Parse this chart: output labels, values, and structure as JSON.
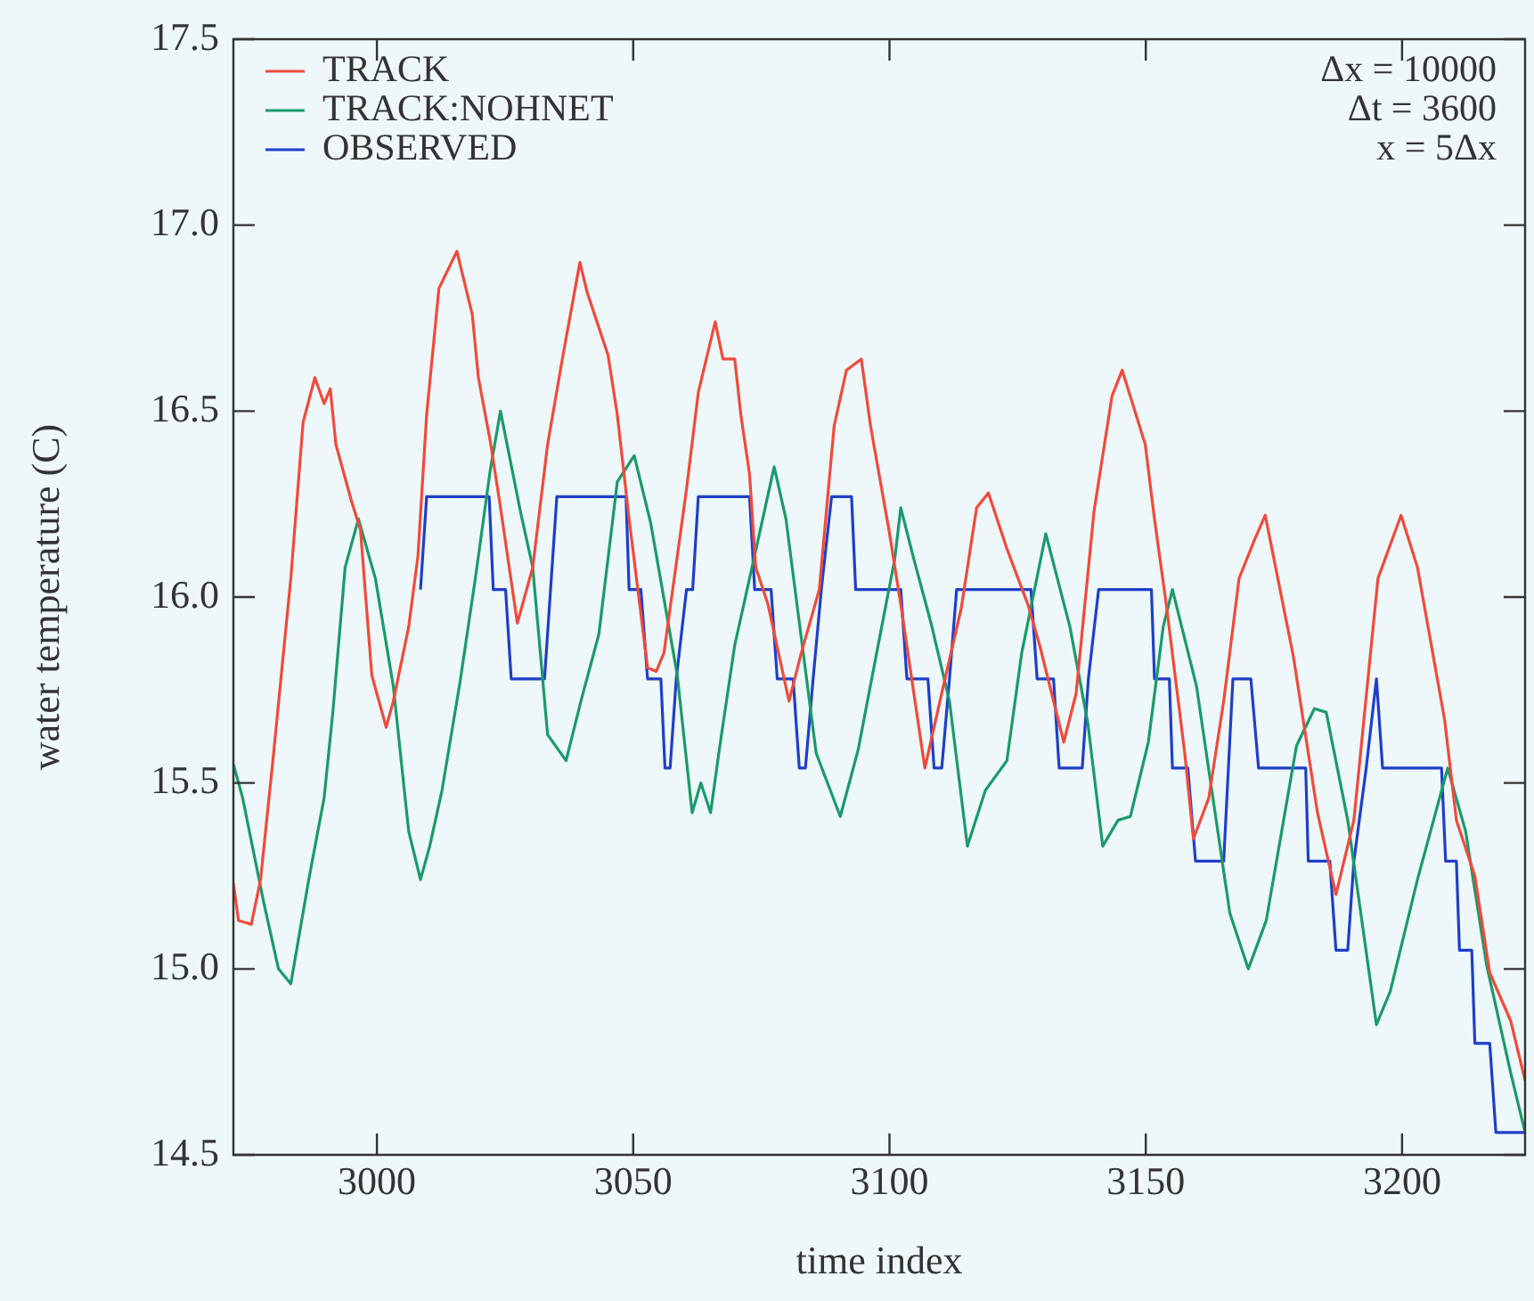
{
  "chart_data": {
    "type": "line",
    "xlabel": "time index",
    "ylabel": "water temperature (C)",
    "xlim": [
      2972,
      3224
    ],
    "xticks": [
      3000,
      3050,
      3100,
      3150,
      3200
    ],
    "ylim": [
      14.5,
      17.5
    ],
    "yticks": [
      14.5,
      {
        "value": 15,
        "label": "15.0"
      },
      15.5,
      {
        "value": 16,
        "label": "16.0"
      },
      16.5,
      {
        "value": 17,
        "label": "17.0"
      },
      17.5
    ],
    "grid": false,
    "legend": "top left",
    "marker": "none",
    "line_style": "solid",
    "annotations": [
      "Δx = 10000",
      "Δt = 3600",
      "x = 5Δx"
    ],
    "series": [
      {
        "name": "TRACK",
        "color": "#f04a3a",
        "x": [
          2972,
          2973,
          2975.5,
          2977.3,
          2979.7,
          2983.2,
          2985.6,
          2987.9,
          2989.7,
          2990.9,
          2992,
          2995,
          2996.8,
          2999,
          3001.8,
          3003.2,
          3006.2,
          3008,
          3009.7,
          3012.1,
          3015.6,
          3018.6,
          3019.8,
          3022.1,
          3023.9,
          3027.4,
          3030.4,
          3033.3,
          3036.3,
          3039.6,
          3041,
          3045.1,
          3046.9,
          3049.2,
          3052.8,
          3054.5,
          3056,
          3060.4,
          3062.7,
          3066,
          3067.5,
          3069.8,
          3071,
          3072.7,
          3073.9,
          3076.3,
          3080.4,
          3082.8,
          3086.3,
          3089.2,
          3091.6,
          3094.5,
          3096.3,
          3099.9,
          3102.2,
          3106.9,
          3110.5,
          3114,
          3117,
          3119.3,
          3122.9,
          3127,
          3129.3,
          3134,
          3136.4,
          3139.9,
          3143.4,
          3145.4,
          3149.9,
          3151.6,
          3154,
          3157.6,
          3159.3,
          3162.3,
          3165.2,
          3168.2,
          3171.1,
          3173.3,
          3178.8,
          3183.5,
          3187.1,
          3190.6,
          3195.3,
          3199.8,
          3203,
          3208.3,
          3210.6,
          3214.2,
          3217.1,
          3221.2,
          3224
        ],
        "values": [
          15.23,
          15.13,
          15.12,
          15.24,
          15.56,
          16.05,
          16.47,
          16.59,
          16.52,
          16.56,
          16.41,
          16.26,
          16.18,
          15.79,
          15.65,
          15.72,
          15.92,
          16.11,
          16.49,
          16.83,
          16.93,
          16.76,
          16.59,
          16.42,
          16.26,
          15.93,
          16.08,
          16.41,
          16.65,
          16.9,
          16.82,
          16.65,
          16.49,
          16.21,
          15.81,
          15.8,
          15.85,
          16.29,
          16.55,
          16.74,
          16.64,
          16.64,
          16.49,
          16.33,
          16.08,
          15.98,
          15.72,
          15.85,
          16.02,
          16.46,
          16.61,
          16.64,
          16.46,
          16.18,
          15.98,
          15.54,
          15.76,
          15.97,
          16.24,
          16.28,
          16.13,
          15.98,
          15.87,
          15.61,
          15.74,
          16.23,
          16.54,
          16.61,
          16.41,
          16.22,
          15.98,
          15.58,
          15.35,
          15.46,
          15.72,
          16.05,
          16.15,
          16.22,
          15.84,
          15.42,
          15.2,
          15.4,
          16.05,
          16.22,
          16.08,
          15.67,
          15.4,
          15.25,
          14.99,
          14.86,
          14.7
        ]
      },
      {
        "name": "TRACK:NOHNET",
        "color": "#1a9a6a",
        "x": [
          2972,
          2973.8,
          2977.9,
          2980.8,
          2983.2,
          2986.7,
          2989.7,
          2991.4,
          2993.8,
          2996.4,
          2999.7,
          3003.2,
          3006.2,
          3008.5,
          3010.3,
          3012.7,
          3016.2,
          3019.2,
          3022.1,
          3024.1,
          3028,
          3030.4,
          3033.3,
          3036.9,
          3039.8,
          3043.3,
          3046.9,
          3050.2,
          3053.4,
          3058.6,
          3061.5,
          3063.2,
          3065.1,
          3066.8,
          3069.8,
          3072.7,
          3075.1,
          3077.5,
          3079.8,
          3085.7,
          3090.4,
          3093.9,
          3097.5,
          3101,
          3102.2,
          3104.6,
          3108.1,
          3111.7,
          3115.2,
          3118.7,
          3122.9,
          3125.8,
          3130.5,
          3135.2,
          3138.7,
          3141.6,
          3144.6,
          3147,
          3150.5,
          3153.4,
          3155.2,
          3159.9,
          3166.4,
          3170,
          3173.5,
          3179.4,
          3182.9,
          3185.2,
          3189.4,
          3195,
          3197.7,
          3203,
          3208.9,
          3212.4,
          3216.5,
          3221.2,
          3224
        ],
        "values": [
          15.55,
          15.46,
          15.18,
          15.0,
          14.96,
          15.24,
          15.46,
          15.69,
          16.08,
          16.21,
          16.05,
          15.76,
          15.37,
          15.24,
          15.33,
          15.48,
          15.77,
          16.05,
          16.34,
          16.5,
          16.23,
          16.08,
          15.63,
          15.56,
          15.72,
          15.9,
          16.31,
          16.38,
          16.2,
          15.79,
          15.42,
          15.5,
          15.42,
          15.59,
          15.87,
          16.05,
          16.2,
          16.35,
          16.21,
          15.58,
          15.41,
          15.59,
          15.85,
          16.1,
          16.24,
          16.11,
          15.93,
          15.72,
          15.33,
          15.48,
          15.56,
          15.85,
          16.17,
          15.92,
          15.66,
          15.33,
          15.4,
          15.41,
          15.61,
          15.92,
          16.02,
          15.76,
          15.15,
          15.0,
          15.13,
          15.6,
          15.7,
          15.69,
          15.4,
          14.85,
          14.94,
          15.24,
          15.54,
          15.37,
          15.01,
          14.72,
          14.56
        ]
      },
      {
        "name": "OBSERVED",
        "color": "#1f3fc8",
        "x": [
          3008.5,
          3009.7,
          3021.9,
          3022.7,
          3025.1,
          3026.2,
          3032.7,
          3035.1,
          3048.6,
          3049.2,
          3051.5,
          3052.8,
          3055.4,
          3056.2,
          3057.2,
          3058.4,
          3060.4,
          3061.6,
          3062.7,
          3072.7,
          3073.7,
          3076.9,
          3078.1,
          3081.2,
          3082.4,
          3083.6,
          3085.1,
          3086.7,
          3088.7,
          3092.6,
          3093.4,
          3102.2,
          3103.4,
          3107.5,
          3108.7,
          3110.2,
          3111.7,
          3113.1,
          3127.6,
          3128.8,
          3132,
          3133.1,
          3137.6,
          3138.8,
          3140.8,
          3151.1,
          3151.7,
          3154.6,
          3155.2,
          3158.2,
          3159.7,
          3165.2,
          3167,
          3170.5,
          3172,
          3181.2,
          3181.7,
          3185.9,
          3187.1,
          3189.4,
          3190.6,
          3193,
          3195,
          3196.2,
          3207.7,
          3208.5,
          3210.6,
          3211.2,
          3213.6,
          3214.2,
          3217.1,
          3218.3,
          3224
        ],
        "values": [
          16.02,
          16.27,
          16.27,
          16.02,
          16.02,
          15.78,
          15.78,
          16.27,
          16.27,
          16.02,
          16.02,
          15.78,
          15.78,
          15.54,
          15.54,
          15.78,
          16.02,
          16.02,
          16.27,
          16.27,
          16.02,
          16.02,
          15.78,
          15.78,
          15.54,
          15.54,
          15.78,
          16.02,
          16.27,
          16.27,
          16.02,
          16.02,
          15.78,
          15.78,
          15.54,
          15.54,
          15.78,
          16.02,
          16.02,
          15.78,
          15.78,
          15.54,
          15.54,
          15.78,
          16.02,
          16.02,
          15.78,
          15.78,
          15.54,
          15.54,
          15.29,
          15.29,
          15.78,
          15.78,
          15.54,
          15.54,
          15.29,
          15.29,
          15.05,
          15.05,
          15.29,
          15.54,
          15.78,
          15.54,
          15.54,
          15.29,
          15.29,
          15.05,
          15.05,
          14.8,
          14.8,
          14.56,
          14.56
        ]
      }
    ]
  }
}
